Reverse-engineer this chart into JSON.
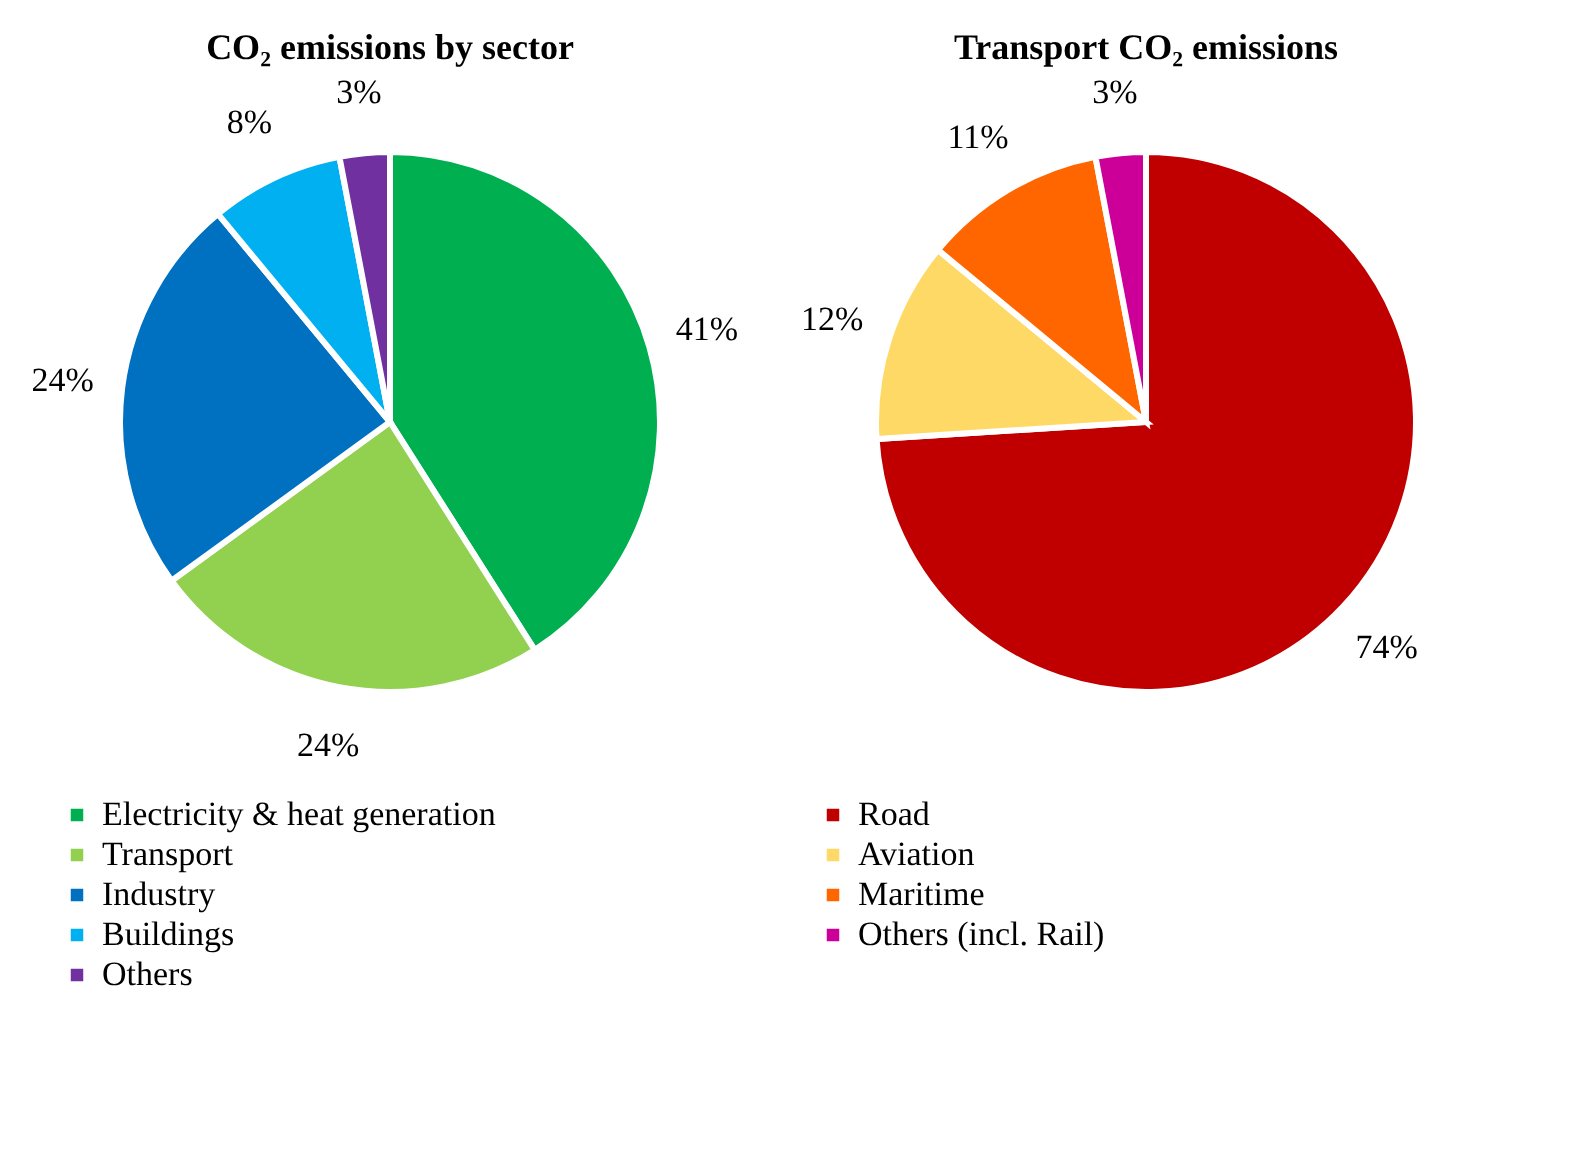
{
  "chart_data": [
    {
      "type": "pie",
      "title": "CO₂ emissions by sector",
      "categories": [
        "Electricity & heat generation",
        "Transport",
        "Industry",
        "Buildings",
        "Others"
      ],
      "values": [
        41,
        24,
        24,
        8,
        3
      ],
      "value_labels": [
        "41%",
        "24%",
        "24%",
        "8%",
        "3%"
      ],
      "colors": [
        "#00b050",
        "#92d050",
        "#0070c0",
        "#00b0f0",
        "#7030a0"
      ],
      "legend": "bottom"
    },
    {
      "type": "pie",
      "title": "Transport CO₂ emissions",
      "categories": [
        "Road",
        "Aviation",
        "Maritime",
        "Others (incl. Rail)"
      ],
      "values": [
        74,
        12,
        11,
        3
      ],
      "value_labels": [
        "74%",
        "12%",
        "11%",
        "3%"
      ],
      "colors": [
        "#c00000",
        "#ffd966",
        "#ff6600",
        "#cc0099"
      ],
      "legend": "bottom"
    }
  ]
}
